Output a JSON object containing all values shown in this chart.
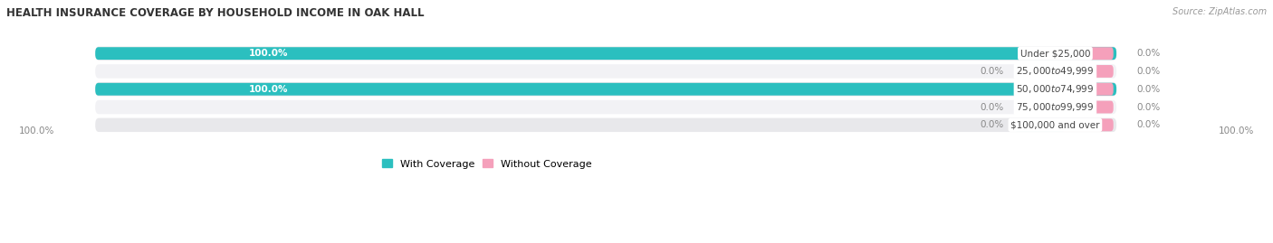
{
  "title": "HEALTH INSURANCE COVERAGE BY HOUSEHOLD INCOME IN OAK HALL",
  "source": "Source: ZipAtlas.com",
  "categories": [
    "Under $25,000",
    "$25,000 to $49,999",
    "$50,000 to $74,999",
    "$75,000 to $99,999",
    "$100,000 and over"
  ],
  "with_coverage": [
    100.0,
    0.0,
    100.0,
    0.0,
    0.0
  ],
  "without_coverage": [
    0.0,
    0.0,
    0.0,
    0.0,
    0.0
  ],
  "color_with": "#2bbfbf",
  "color_without": "#f5a0bb",
  "row_bg_even": "#e8e8eb",
  "row_bg_odd": "#f2f2f5",
  "figsize": [
    14.06,
    2.69
  ],
  "dpi": 100,
  "bar_total": 100.0,
  "stub_size": 5.0,
  "label_inside_color": "#ffffff",
  "label_outside_color": "#888888",
  "category_label_color": "#444444",
  "title_color": "#333333",
  "source_color": "#999999"
}
